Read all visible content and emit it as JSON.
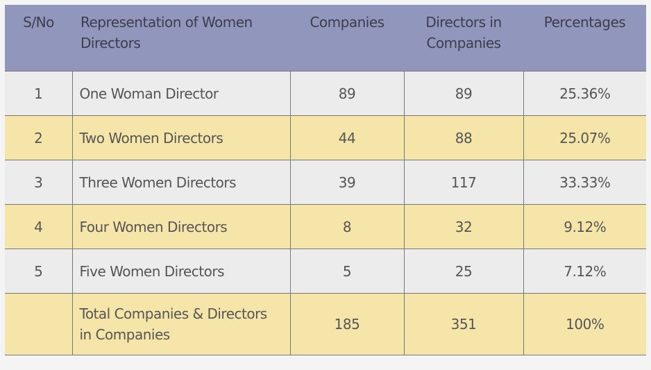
{
  "headers": [
    "S/No",
    "Representation of Women Directors",
    "Companies",
    "Directors in Companies",
    "Percentages"
  ],
  "rows": [
    [
      "1",
      "One Woman Director",
      "89",
      "89",
      "25.36%"
    ],
    [
      "2",
      "Two Women Directors",
      "44",
      "88",
      "25.07%"
    ],
    [
      "3",
      "Three Women Directors",
      "39",
      "117",
      "33.33%"
    ],
    [
      "4",
      "Four Women Directors",
      "8",
      "32",
      "9.12%"
    ],
    [
      "5",
      "Five Women Directors",
      "5",
      "25",
      "7.12%"
    ]
  ],
  "total": {
    "sno": "",
    "label": "Total Companies & Directors in Companies",
    "companies": "185",
    "directors": "351",
    "percentage": "100%"
  },
  "colors": {
    "header": "#9196bd",
    "row_alt": "#f6e5a8",
    "row": "#ececec"
  }
}
